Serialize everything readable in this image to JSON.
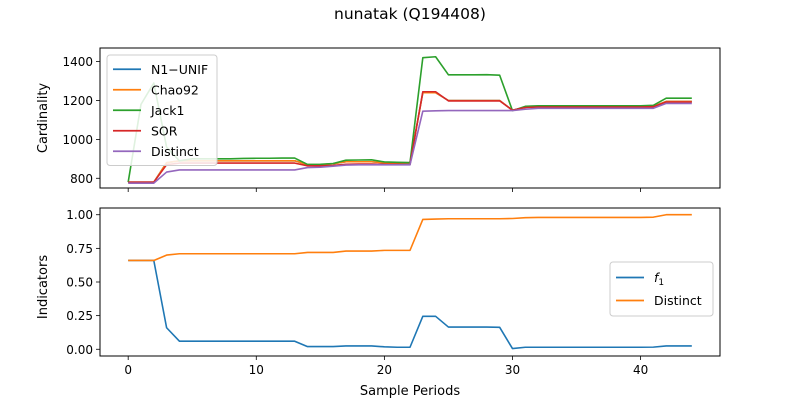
{
  "figure": {
    "title": "nunatak (Q194408)",
    "xlabel": "Sample Periods"
  },
  "chart_data": [
    {
      "type": "line",
      "ylabel": "Cardinality",
      "xlim": [
        -2.2,
        46.2
      ],
      "ylim": [
        750,
        1470
      ],
      "xticks": [
        0,
        10,
        20,
        30,
        40
      ],
      "xticklabels_visible": false,
      "yticks": [
        800,
        1000,
        1200,
        1400
      ],
      "yticklabels": [
        "800",
        "1000",
        "1200",
        "1400"
      ],
      "legend_position": "upper left",
      "grid": false,
      "x": [
        0,
        1,
        2,
        3,
        4,
        5,
        6,
        7,
        8,
        9,
        10,
        11,
        12,
        13,
        14,
        15,
        16,
        17,
        18,
        19,
        20,
        21,
        22,
        23,
        24,
        25,
        26,
        27,
        28,
        29,
        30,
        31,
        32,
        33,
        34,
        35,
        36,
        37,
        38,
        39,
        40,
        41,
        42,
        43,
        44
      ],
      "series": [
        {
          "name": "N1−UNIF",
          "color": "#1f77b4",
          "values": [
            780,
            780,
            780,
            880,
            890,
            890,
            890,
            890,
            890,
            890,
            890,
            890,
            890,
            890,
            870,
            870,
            875,
            885,
            885,
            885,
            880,
            880,
            880,
            1240,
            1240,
            1200,
            1200,
            1200,
            1200,
            1200,
            1150,
            1165,
            1170,
            1170,
            1170,
            1170,
            1170,
            1170,
            1170,
            1170,
            1170,
            1170,
            1195,
            1195,
            1195
          ]
        },
        {
          "name": "Chao92",
          "color": "#ff7f0e",
          "values": [
            780,
            780,
            780,
            880,
            890,
            890,
            890,
            890,
            890,
            890,
            890,
            890,
            890,
            890,
            870,
            870,
            875,
            885,
            885,
            885,
            880,
            880,
            880,
            1240,
            1240,
            1200,
            1200,
            1200,
            1200,
            1200,
            1150,
            1165,
            1170,
            1170,
            1170,
            1170,
            1170,
            1170,
            1170,
            1170,
            1170,
            1170,
            1195,
            1195,
            1195
          ]
        },
        {
          "name": "Jack1",
          "color": "#2ca02c",
          "values": [
            780,
            1180,
            1290,
            960,
            890,
            900,
            900,
            900,
            900,
            902,
            903,
            903,
            904,
            904,
            871,
            872,
            876,
            893,
            894,
            895,
            884,
            882,
            880,
            1420,
            1425,
            1332,
            1332,
            1332,
            1333,
            1330,
            1148,
            1170,
            1173,
            1173,
            1173,
            1173,
            1173,
            1173,
            1173,
            1173,
            1173,
            1175,
            1212,
            1212,
            1212
          ]
        },
        {
          "name": "SOR",
          "color": "#d62728",
          "values": [
            780,
            780,
            780,
            870,
            878,
            878,
            878,
            878,
            878,
            878,
            878,
            878,
            878,
            878,
            864,
            864,
            866,
            872,
            873,
            873,
            872,
            872,
            871,
            1245,
            1245,
            1198,
            1198,
            1198,
            1198,
            1198,
            1150,
            1164,
            1166,
            1166,
            1166,
            1166,
            1166,
            1166,
            1166,
            1166,
            1166,
            1168,
            1192,
            1192,
            1192
          ]
        },
        {
          "name": "Distinct",
          "color": "#9467bd",
          "values": [
            775,
            775,
            775,
            832,
            843,
            843,
            843,
            843,
            843,
            843,
            843,
            843,
            843,
            843,
            855,
            857,
            862,
            868,
            869,
            869,
            869,
            869,
            869,
            1145,
            1147,
            1148,
            1148,
            1148,
            1148,
            1148,
            1148,
            1155,
            1160,
            1160,
            1160,
            1160,
            1160,
            1160,
            1160,
            1160,
            1160,
            1160,
            1185,
            1185,
            1185
          ]
        }
      ]
    },
    {
      "type": "line",
      "ylabel": "Indicators",
      "xlim": [
        -2.2,
        46.2
      ],
      "ylim": [
        -0.05,
        1.05
      ],
      "xticks": [
        0,
        10,
        20,
        30,
        40
      ],
      "xticklabels": [
        "0",
        "10",
        "20",
        "30",
        "40"
      ],
      "yticks": [
        0,
        0.25,
        0.5,
        0.75,
        1.0
      ],
      "yticklabels": [
        "0.00",
        "0.25",
        "0.50",
        "0.75",
        "1.00"
      ],
      "legend_position": "center right",
      "grid": false,
      "x": [
        0,
        1,
        2,
        3,
        4,
        5,
        6,
        7,
        8,
        9,
        10,
        11,
        12,
        13,
        14,
        15,
        16,
        17,
        18,
        19,
        20,
        21,
        22,
        23,
        24,
        25,
        26,
        27,
        28,
        29,
        30,
        31,
        32,
        33,
        34,
        35,
        36,
        37,
        38,
        39,
        40,
        41,
        42,
        43,
        44
      ],
      "series": [
        {
          "name": "f1",
          "label_main": "f",
          "label_sub": "1",
          "color": "#1f77b4",
          "values": [
            0.66,
            0.66,
            0.66,
            0.16,
            0.06,
            0.06,
            0.06,
            0.06,
            0.06,
            0.06,
            0.06,
            0.06,
            0.06,
            0.06,
            0.02,
            0.02,
            0.02,
            0.025,
            0.025,
            0.025,
            0.018,
            0.015,
            0.015,
            0.245,
            0.245,
            0.165,
            0.165,
            0.165,
            0.165,
            0.163,
            0.005,
            0.015,
            0.015,
            0.015,
            0.015,
            0.015,
            0.015,
            0.015,
            0.015,
            0.015,
            0.015,
            0.016,
            0.025,
            0.025,
            0.025
          ]
        },
        {
          "name": "Distinct",
          "color": "#ff7f0e",
          "values": [
            0.66,
            0.66,
            0.66,
            0.7,
            0.71,
            0.71,
            0.71,
            0.71,
            0.71,
            0.71,
            0.71,
            0.71,
            0.71,
            0.71,
            0.72,
            0.72,
            0.72,
            0.73,
            0.73,
            0.73,
            0.735,
            0.735,
            0.735,
            0.965,
            0.968,
            0.97,
            0.97,
            0.97,
            0.97,
            0.97,
            0.972,
            0.978,
            0.98,
            0.98,
            0.98,
            0.98,
            0.98,
            0.98,
            0.98,
            0.98,
            0.98,
            0.982,
            1.0,
            1.0,
            1.0
          ]
        }
      ]
    }
  ]
}
